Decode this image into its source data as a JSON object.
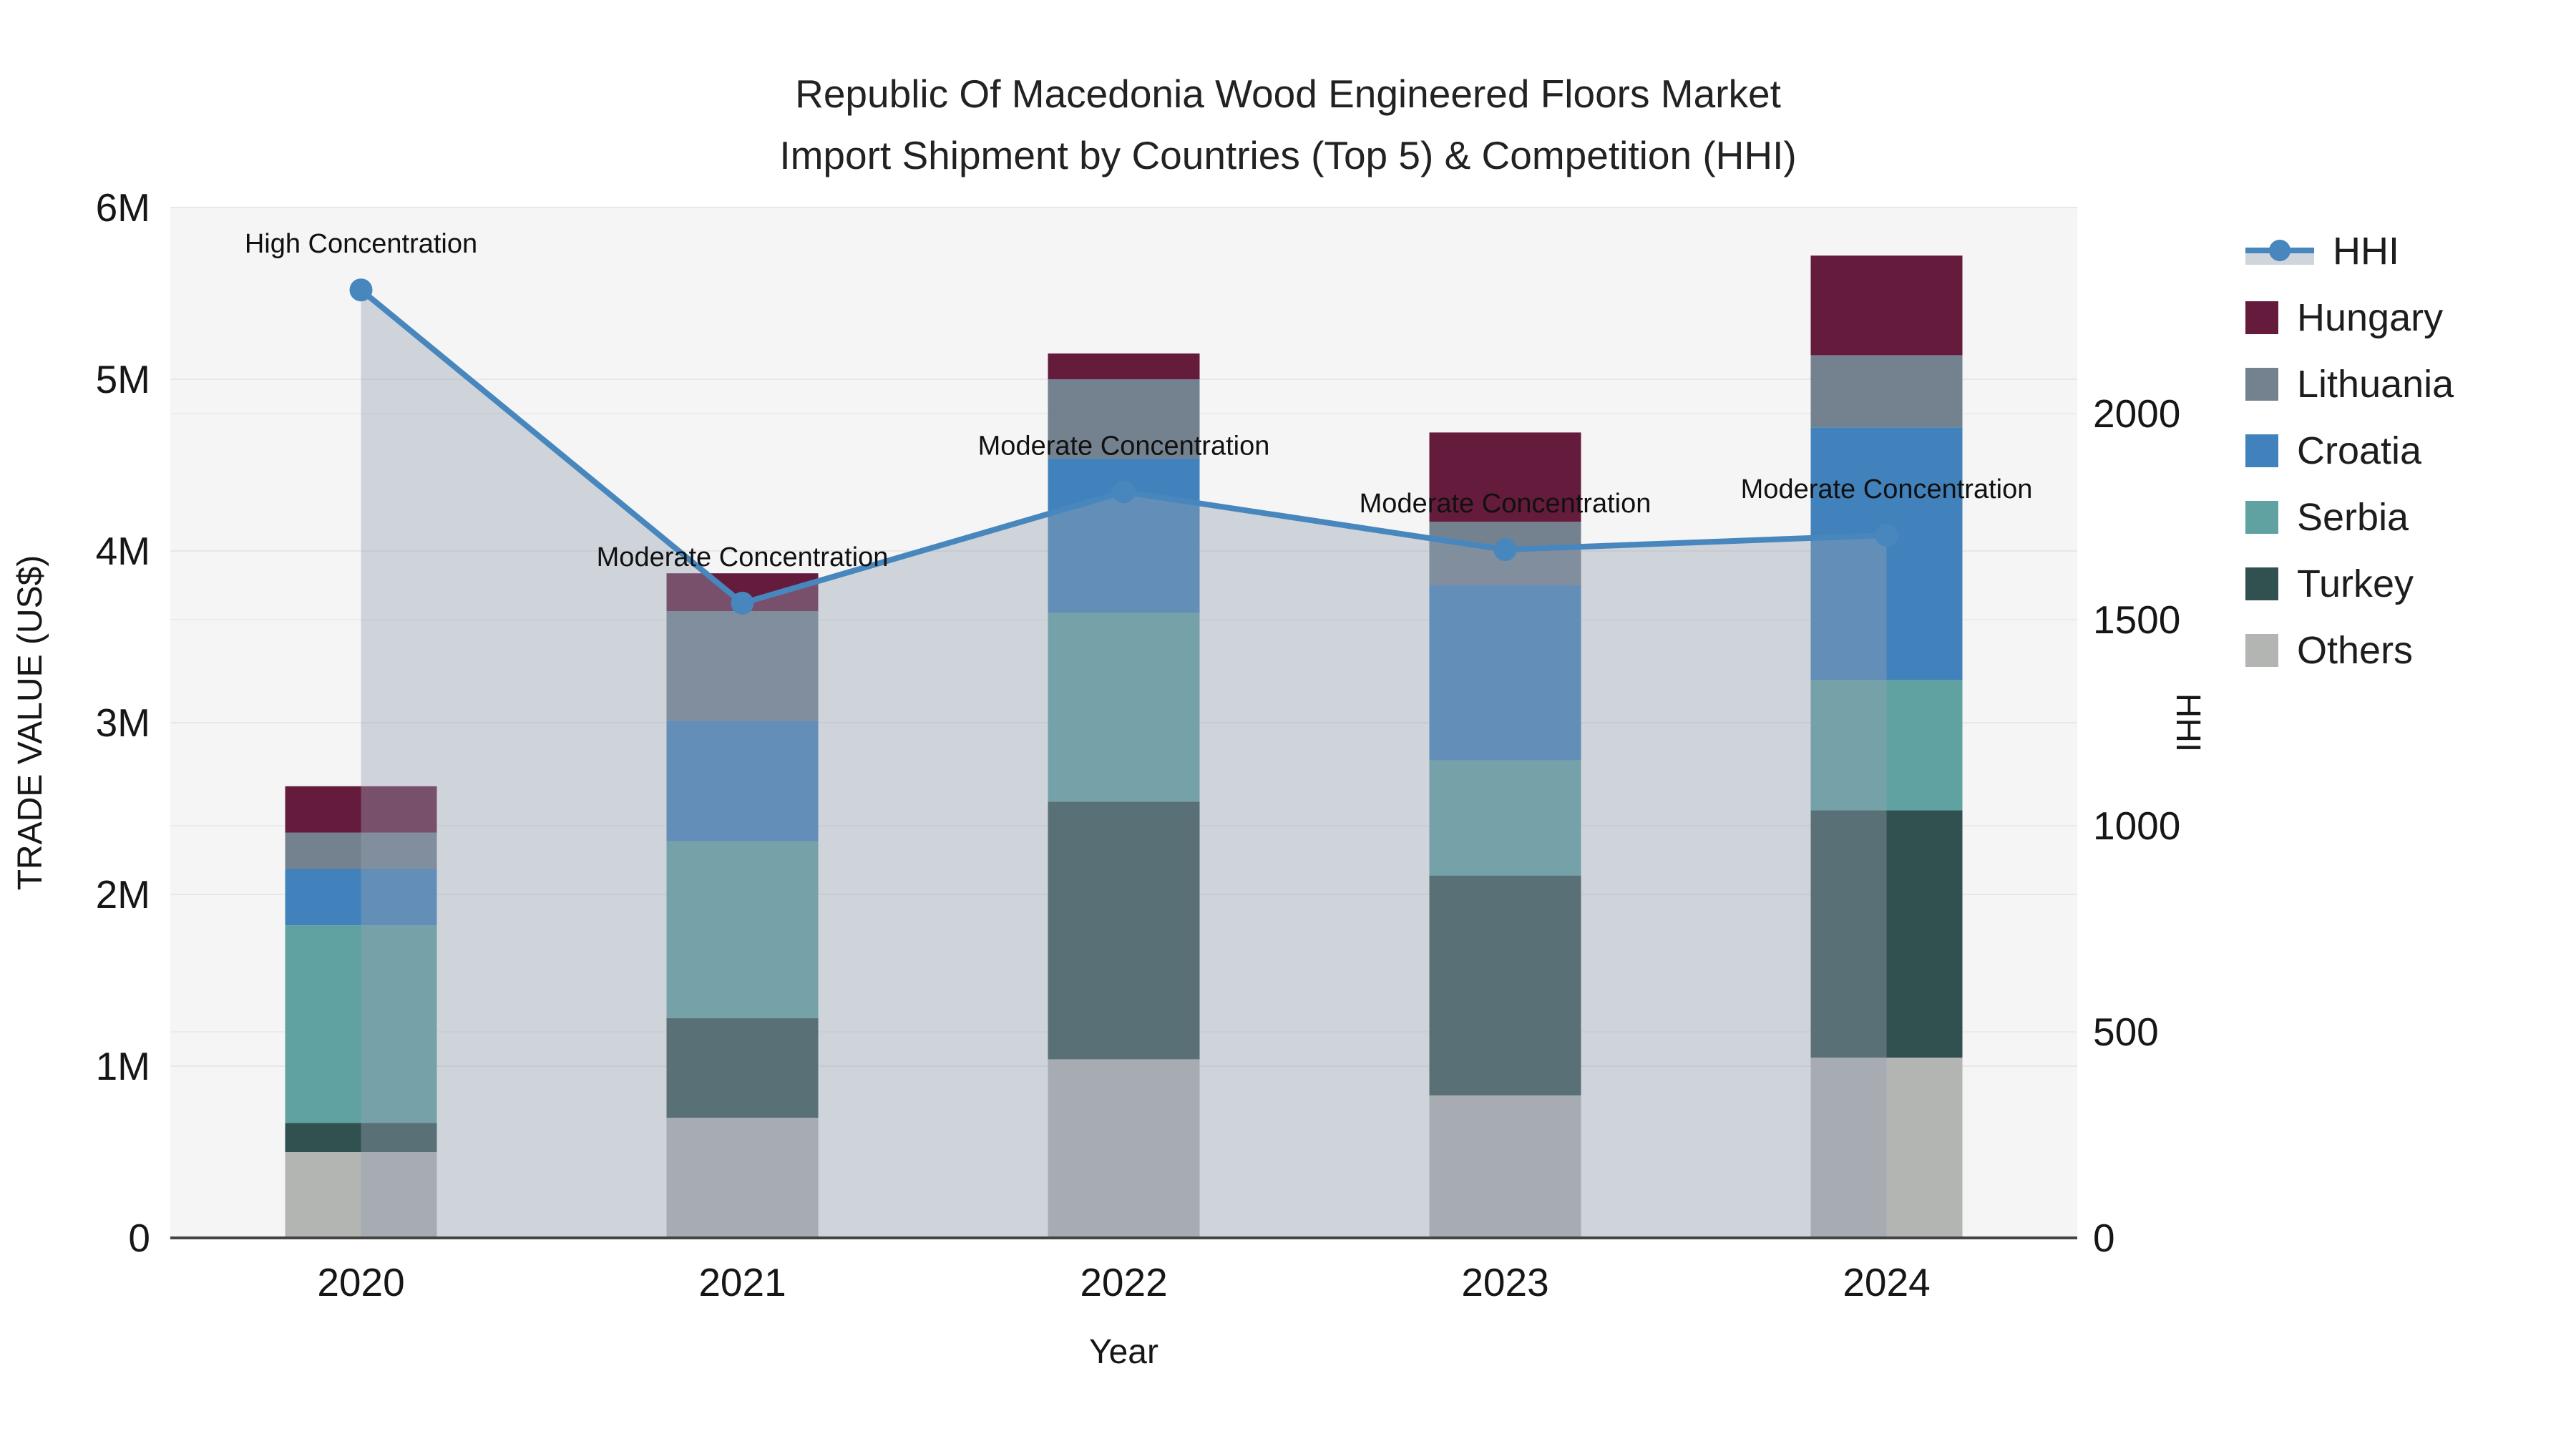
{
  "title": {
    "line1": "Republic Of Macedonia Wood Engineered Floors Market",
    "line2": "Import Shipment by Countries (Top 5) & Competition (HHI)"
  },
  "legend": {
    "items": [
      {
        "name": "hhi",
        "label": "HHI",
        "type": "line",
        "color": "#4787BE"
      },
      {
        "name": "hungary",
        "label": "Hungary",
        "type": "swatch",
        "color": "#651B3C"
      },
      {
        "name": "lithuania",
        "label": "Lithuania",
        "type": "swatch",
        "color": "#74828F"
      },
      {
        "name": "croatia",
        "label": "Croatia",
        "type": "swatch",
        "color": "#4282BC"
      },
      {
        "name": "serbia",
        "label": "Serbia",
        "type": "swatch",
        "color": "#60A2A2"
      },
      {
        "name": "turkey",
        "label": "Turkey",
        "type": "swatch",
        "color": "#315150"
      },
      {
        "name": "others",
        "label": "Others",
        "type": "swatch",
        "color": "#B3B5B3"
      }
    ]
  },
  "chart_data": {
    "type": "bar",
    "stacked": true,
    "title": "Republic Of Macedonia Wood Engineered Floors Market Import Shipment by Countries (Top 5) & Competition (HHI)",
    "xlabel": "Year",
    "ylabel": "TRADE VALUE (US$)",
    "y2label": "HHI",
    "categories": [
      "2020",
      "2021",
      "2022",
      "2023",
      "2024"
    ],
    "ylim": [
      0,
      6000000
    ],
    "y2lim": [
      0,
      2500
    ],
    "grid": true,
    "legend_position": "right",
    "yticks": [
      {
        "value": 0,
        "label": "0"
      },
      {
        "value": 1000000,
        "label": "1M"
      },
      {
        "value": 2000000,
        "label": "2M"
      },
      {
        "value": 3000000,
        "label": "3M"
      },
      {
        "value": 4000000,
        "label": "4M"
      },
      {
        "value": 5000000,
        "label": "5M"
      },
      {
        "value": 6000000,
        "label": "6M"
      }
    ],
    "y2ticks": [
      {
        "value": 0,
        "label": "0"
      },
      {
        "value": 500,
        "label": "500"
      },
      {
        "value": 1000,
        "label": "1000"
      },
      {
        "value": 1500,
        "label": "1500"
      },
      {
        "value": 2000,
        "label": "2000"
      }
    ],
    "series": [
      {
        "name": "Others",
        "color": "#B3B5B3",
        "values": [
          500000,
          700000,
          1040000,
          830000,
          1050000
        ]
      },
      {
        "name": "Turkey",
        "color": "#315150",
        "values": [
          170000,
          580000,
          1500000,
          1280000,
          1440000
        ]
      },
      {
        "name": "Serbia",
        "color": "#60A2A2",
        "values": [
          1150000,
          1030000,
          1100000,
          670000,
          760000
        ]
      },
      {
        "name": "Croatia",
        "color": "#4282BC",
        "values": [
          330000,
          700000,
          900000,
          1020000,
          1470000
        ]
      },
      {
        "name": "Lithuania",
        "color": "#74828F",
        "values": [
          210000,
          640000,
          460000,
          370000,
          420000
        ]
      },
      {
        "name": "Hungary",
        "color": "#651B3C",
        "values": [
          270000,
          220000,
          150000,
          520000,
          580000
        ]
      }
    ],
    "line_series": {
      "name": "HHI",
      "axis": "right",
      "color": "#4787BE",
      "area_fill": "rgba(150,161,177,0.40)",
      "values": [
        2300,
        1540,
        1810,
        1670,
        1705
      ]
    },
    "annotations": [
      {
        "category": "2020",
        "text": "High Concentration"
      },
      {
        "category": "2021",
        "text": "Moderate Concentration"
      },
      {
        "category": "2022",
        "text": "Moderate Concentration"
      },
      {
        "category": "2023",
        "text": "Moderate Concentration"
      },
      {
        "category": "2024",
        "text": "Moderate Concentration"
      }
    ]
  }
}
